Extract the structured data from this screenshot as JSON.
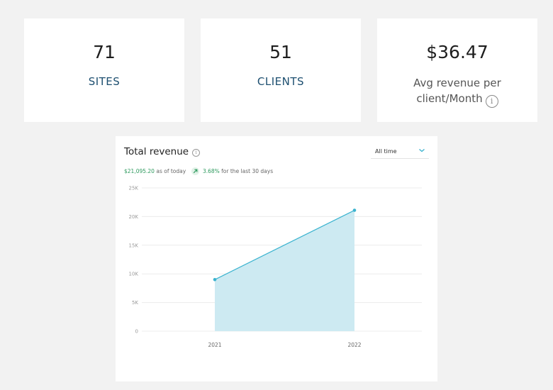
{
  "stats": [
    {
      "value": "71",
      "label": "SITES"
    },
    {
      "value": "51",
      "label": "CLIENTS"
    },
    {
      "value": "$36.47",
      "label_line1": "Avg revenue per",
      "label_line2": "client/Month",
      "info_glyph": "i"
    }
  ],
  "revenue_card": {
    "title": "Total revenue",
    "info_glyph": "i",
    "range_selected": "All time",
    "summary_amount": "$21,095.20",
    "summary_as_of": "as of today",
    "summary_change": "3.68%",
    "summary_period": "for the last 30 days",
    "accent_color": "#3bb3cf",
    "fill_color": "#cdeaf2",
    "positive_color": "#2e9a5e"
  },
  "chart_data": {
    "type": "area",
    "x": [
      "2021",
      "2022"
    ],
    "values": [
      9000,
      21095.2
    ],
    "ylim": [
      0,
      25000
    ],
    "yticks": [
      0,
      5000,
      10000,
      15000,
      20000,
      25000
    ],
    "ytick_labels": [
      "0",
      "5K",
      "10K",
      "15K",
      "20K",
      "25K"
    ],
    "grid": true,
    "xlabel": "",
    "ylabel": ""
  }
}
